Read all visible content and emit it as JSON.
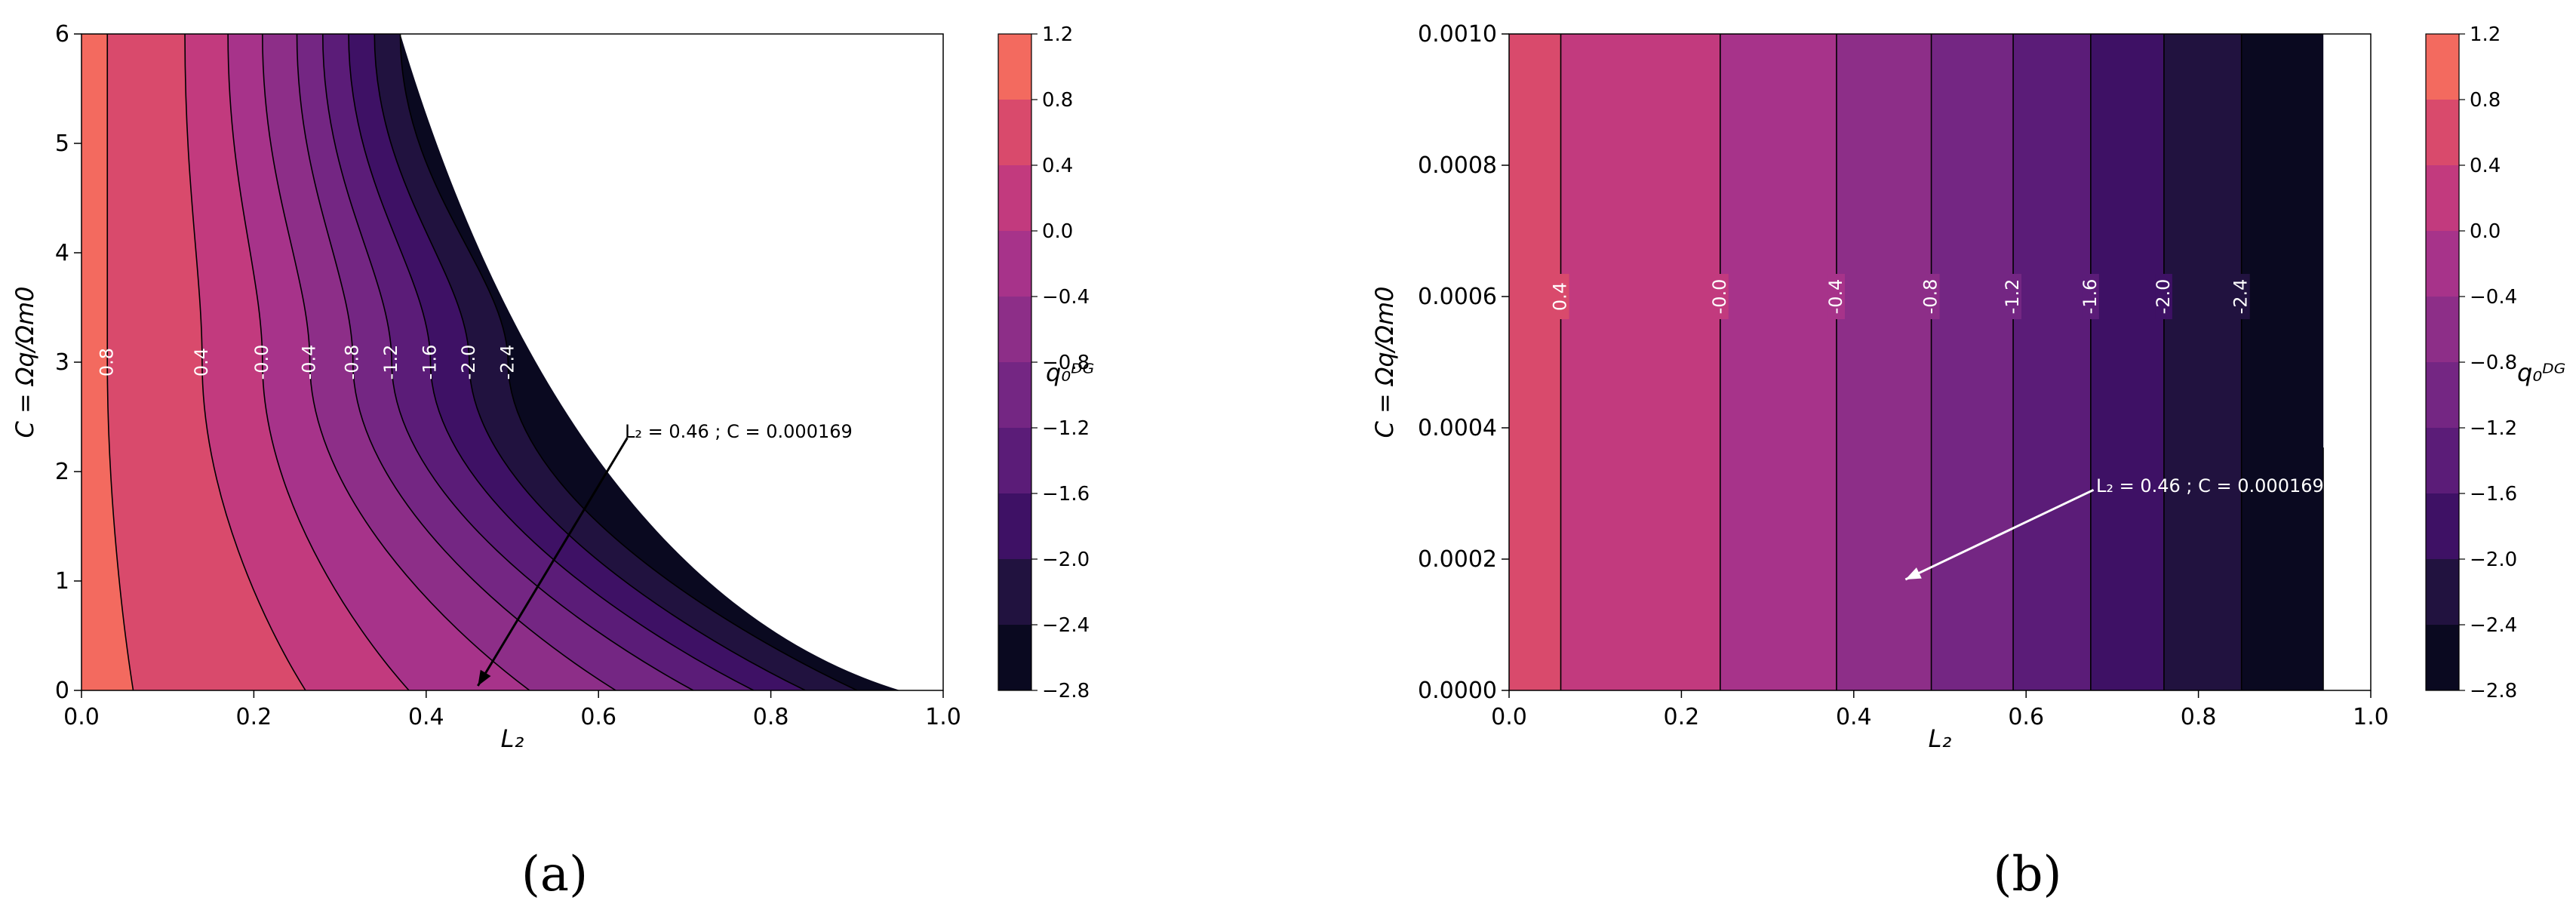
{
  "colormap": {
    "edges": [
      -2.8,
      -2.4,
      -2.0,
      -1.6,
      -1.2,
      -0.8,
      -0.4,
      0.0,
      0.4,
      0.8,
      1.2
    ],
    "colors": [
      "#0a0920",
      "#21123f",
      "#3e1165",
      "#5b1c78",
      "#742683",
      "#8d2e88",
      "#a7338a",
      "#c23a7e",
      "#d94a6c",
      "#f36a5f"
    ]
  },
  "chart_data": [
    {
      "type": "heatmap",
      "panel_label": "(a)",
      "xlabel": "L₂",
      "ylabel": "C = Ωq/Ωm0",
      "xlim": [
        0.0,
        1.0
      ],
      "ylim": [
        0,
        6
      ],
      "xticks": [
        "0.0",
        "0.2",
        "0.4",
        "0.6",
        "0.8",
        "1.0"
      ],
      "yticks": [
        "0",
        "1",
        "2",
        "3",
        "4",
        "5",
        "6"
      ],
      "z_label": "q₀ᴰᴳ",
      "colorbar_ticks": [
        "1.2",
        "0.8",
        "0.4",
        "0.0",
        "−0.4",
        "−0.8",
        "−1.2",
        "−1.6",
        "−2.0",
        "−2.4",
        "−2.8"
      ],
      "contour_levels": [
        0.8,
        0.4,
        0.0,
        -0.4,
        -0.8,
        -1.2,
        -1.6,
        -2.0,
        -2.4
      ],
      "contour_labels": [
        "0.8",
        "0.4",
        "-0.0",
        "-0.4",
        "-0.8",
        "-1.2",
        "-1.6",
        "-2.0",
        "-2.4"
      ],
      "contour_label_y": 3.0,
      "contour_x_at_label": [
        0.03,
        0.14,
        0.21,
        0.265,
        0.315,
        0.36,
        0.405,
        0.45,
        0.495
      ],
      "contour_x_at_bottom": [
        0.06,
        0.26,
        0.38,
        0.52,
        0.62,
        0.71,
        0.78,
        0.84,
        0.9
      ],
      "contour_x_at_top": [
        0.03,
        0.12,
        0.17,
        0.21,
        0.25,
        0.28,
        0.31,
        0.34,
        0.37
      ],
      "valid_region_edge_x_at_top": 0.37,
      "valid_region_edge_x_at_bottom": 0.95,
      "annotation": {
        "text": "L₂ = 0.46 ; C = 0.000169",
        "point": [
          0.46,
          0.000169
        ],
        "text_at": [
          0.63,
          2.35
        ],
        "arrow_color": "#000000"
      }
    },
    {
      "type": "heatmap",
      "panel_label": "(b)",
      "xlabel": "L₂",
      "ylabel": "C = Ωq/Ωm0",
      "xlim": [
        0.0,
        1.0
      ],
      "ylim": [
        0.0,
        0.001
      ],
      "xticks": [
        "0.0",
        "0.2",
        "0.4",
        "0.6",
        "0.8",
        "1.0"
      ],
      "yticks": [
        "0.0000",
        "0.0002",
        "0.0004",
        "0.0006",
        "0.0008",
        "0.0010"
      ],
      "z_label": "q₀ᴰᴳ",
      "colorbar_ticks": [
        "1.2",
        "0.8",
        "0.4",
        "0.0",
        "−0.4",
        "−0.8",
        "−1.2",
        "−1.6",
        "−2.0",
        "−2.4",
        "−2.8"
      ],
      "contour_levels": [
        0.4,
        0.0,
        -0.4,
        -0.8,
        -1.2,
        -1.6,
        -2.0,
        -2.4
      ],
      "contour_labels": [
        "0.4",
        "-0.0",
        "-0.4",
        "-0.8",
        "-1.2",
        "-1.6",
        "-2.0",
        "-2.4"
      ],
      "contour_label_y": 0.0006,
      "contour_x": [
        0.06,
        0.245,
        0.38,
        0.49,
        0.585,
        0.675,
        0.76,
        0.85
      ],
      "valid_region_edge_x": 0.945,
      "annotation": {
        "text": "L₂ = 0.46 ; C = 0.000169",
        "point": [
          0.46,
          0.000169
        ],
        "text_at": [
          0.68,
          0.00031
        ],
        "arrow_color": "#ffffff"
      }
    }
  ]
}
